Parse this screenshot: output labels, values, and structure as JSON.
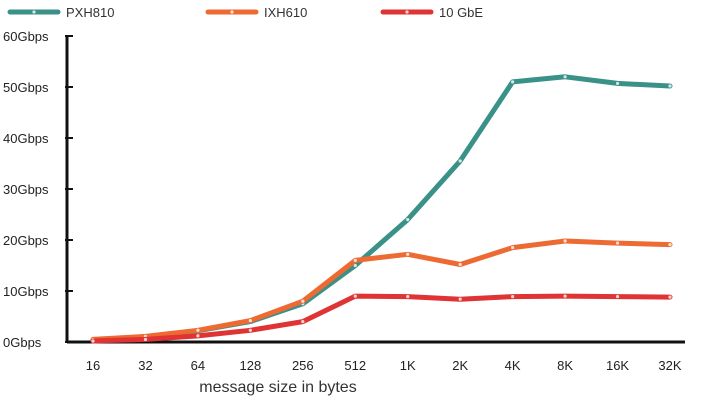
{
  "chart_data": {
    "type": "line",
    "title": "",
    "xlabel": "message size in bytes",
    "ylabel": "",
    "categories": [
      "16",
      "32",
      "64",
      "128",
      "256",
      "512",
      "1K",
      "2K",
      "4K",
      "8K",
      "16K",
      "32K"
    ],
    "y_ticks": [
      "0Gbps",
      "10Gbps",
      "20Gbps",
      "30Gbps",
      "40Gbps",
      "50Gbps",
      "60Gbps"
    ],
    "ylim": [
      0,
      60
    ],
    "grid": false,
    "legend_position": "top-left",
    "series": [
      {
        "name": "PXH810",
        "color": "#3a9188",
        "values": [
          0.3,
          1.0,
          2.2,
          4.0,
          7.5,
          15.0,
          24.0,
          35.5,
          51.0,
          52.0,
          50.7,
          50.2
        ]
      },
      {
        "name": "IXH610",
        "color": "#ee6a33",
        "values": [
          0.5,
          1.1,
          2.3,
          4.2,
          8.0,
          16.0,
          17.2,
          15.2,
          18.5,
          19.8,
          19.4,
          19.1
        ]
      },
      {
        "name": "10 GbE",
        "color": "#e03333",
        "values": [
          0.2,
          0.5,
          1.2,
          2.3,
          4.0,
          9.0,
          8.9,
          8.4,
          8.9,
          9.0,
          8.9,
          8.8
        ]
      }
    ]
  }
}
